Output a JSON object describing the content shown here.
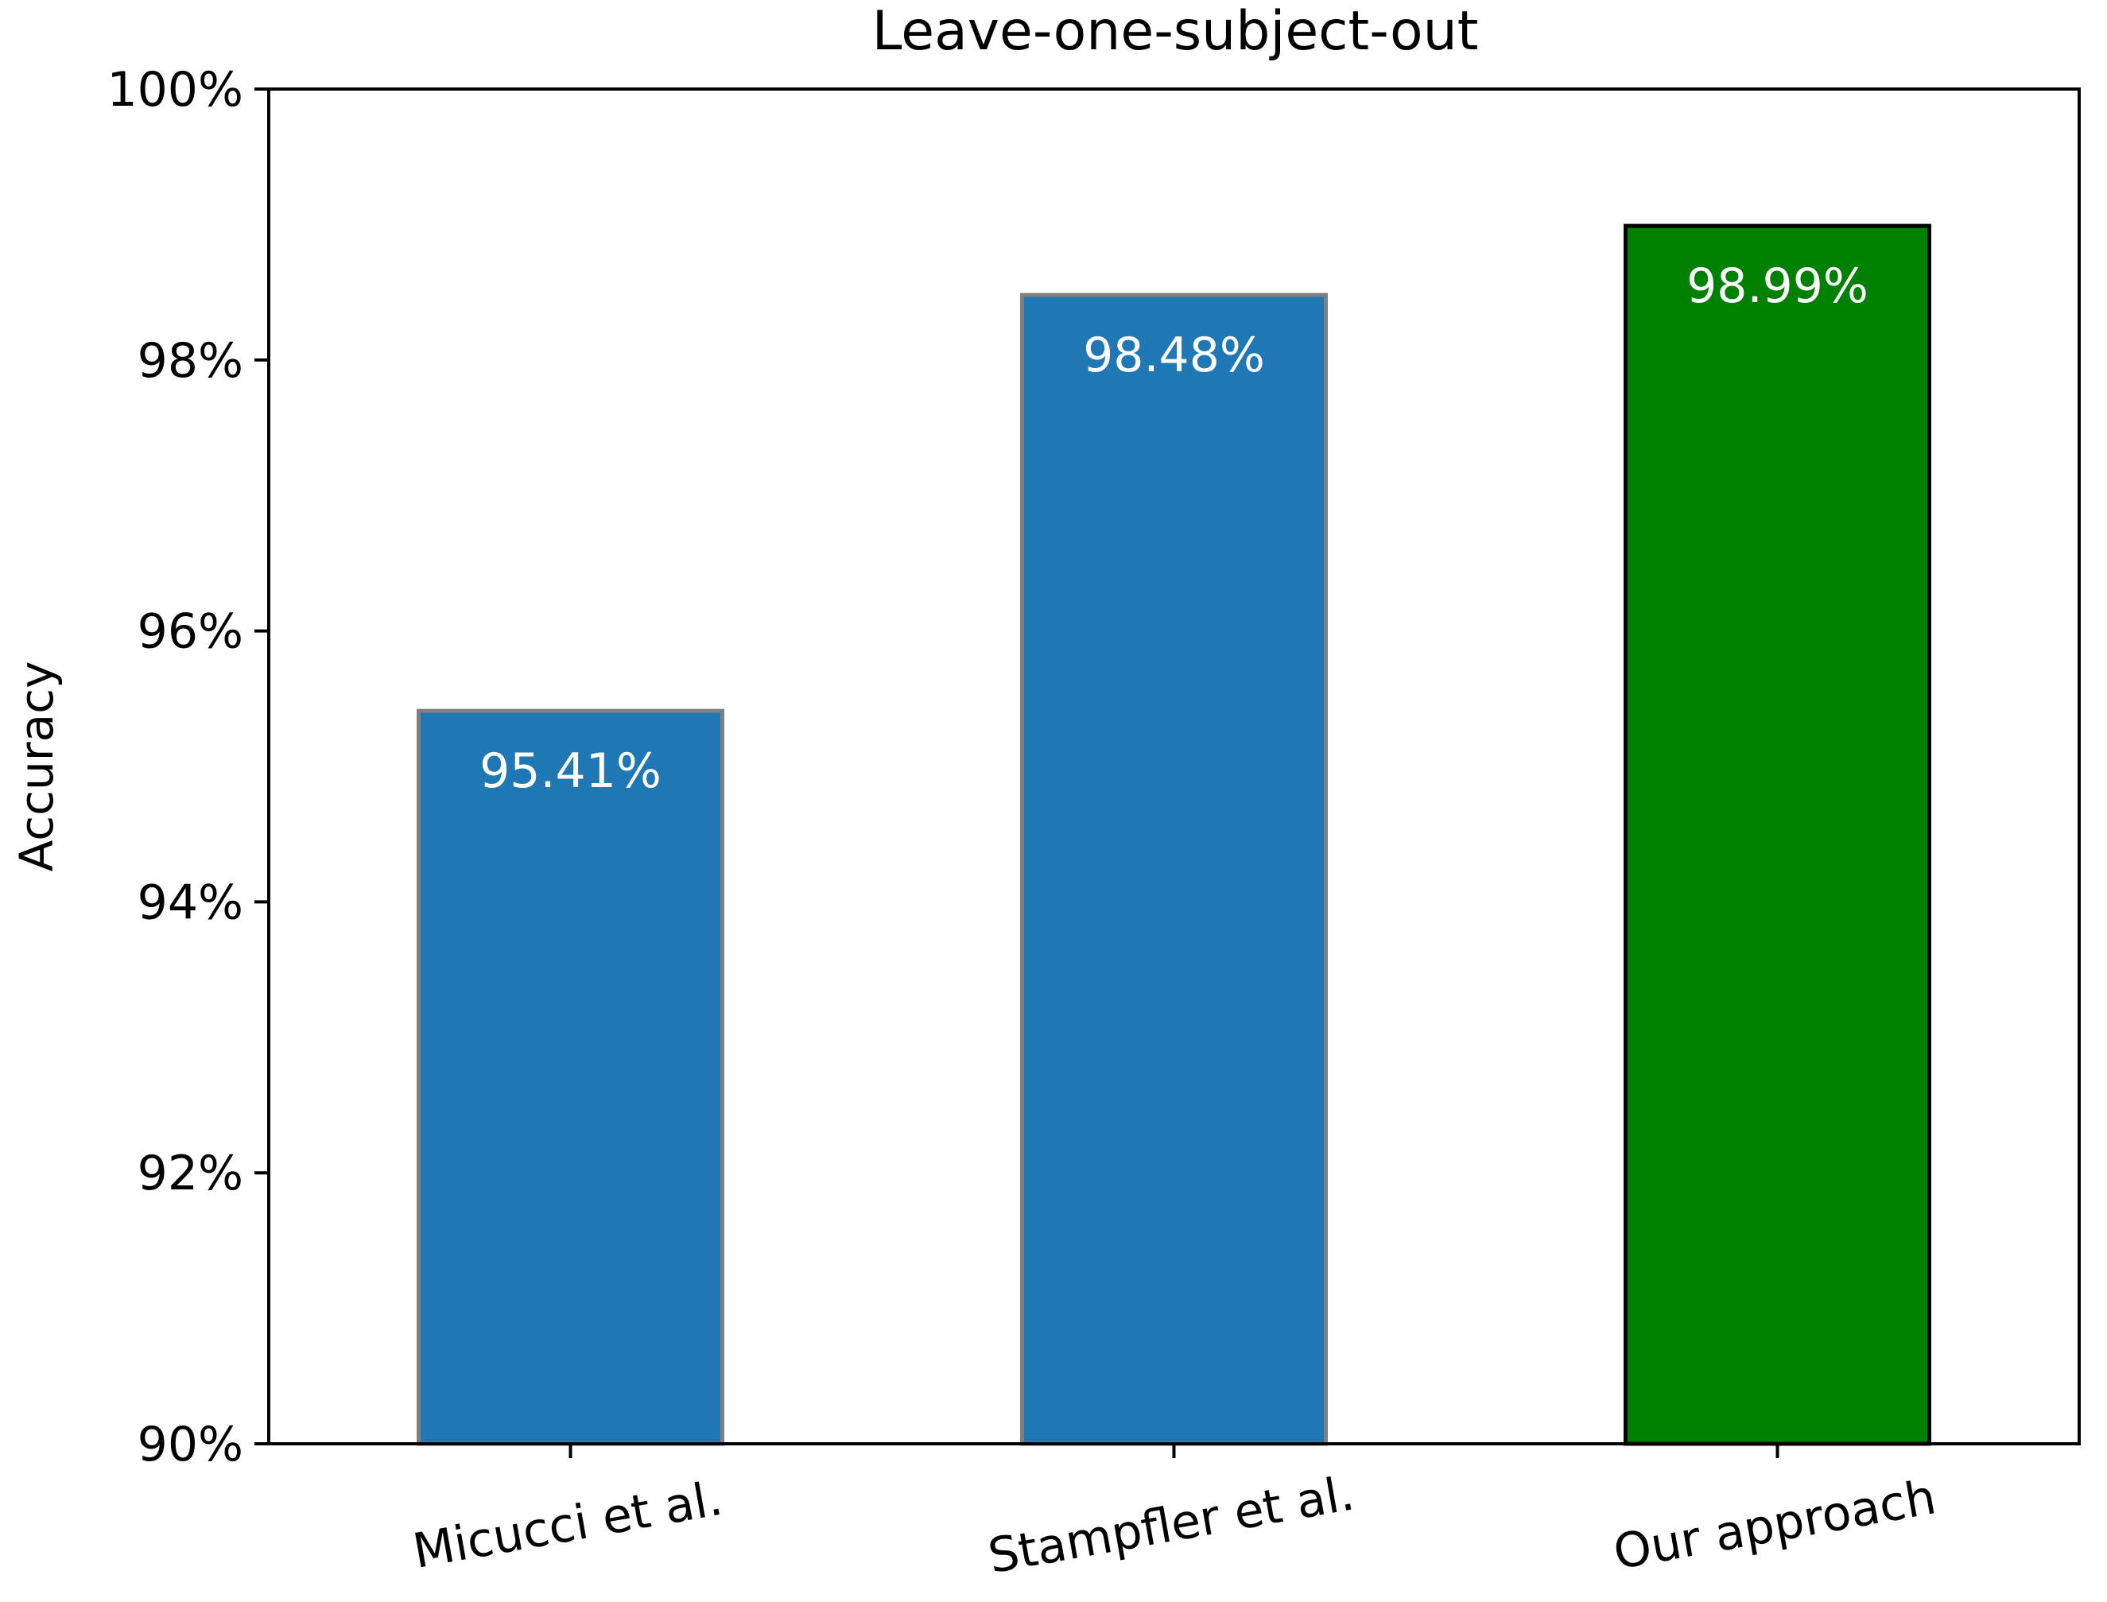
{
  "chart_data": {
    "type": "bar",
    "title": "Leave-one-subject-out",
    "xlabel": "",
    "ylabel": "Accuracy",
    "ylim": [
      90,
      100
    ],
    "y_ticks": [
      90,
      92,
      94,
      96,
      98,
      100
    ],
    "y_tick_labels": [
      "90%",
      "92%",
      "94%",
      "96%",
      "98%",
      "100%"
    ],
    "categories": [
      "Micucci et al.",
      "Stampfler et al.",
      "Our approach"
    ],
    "values": [
      95.41,
      98.48,
      98.99
    ],
    "value_labels": [
      "95.41%",
      "98.48%",
      "98.99%"
    ],
    "bar_colors": [
      "#1f77b4",
      "#1f77b4",
      "#008000"
    ],
    "bar_edge_colors": [
      "#808080",
      "#808080",
      "#000000"
    ],
    "value_label_color": "#ffffff",
    "x_tick_label_rotation_deg": -10,
    "grid": false,
    "legend": "none"
  }
}
